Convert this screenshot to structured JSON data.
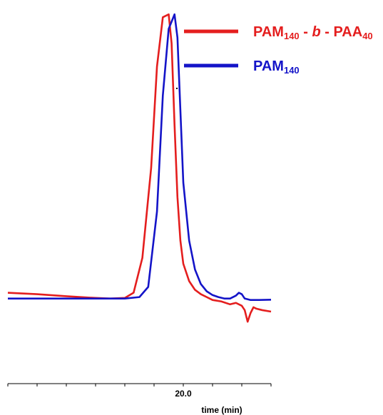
{
  "chart_data": {
    "type": "line",
    "xlabel": "time (min)",
    "ylabel": "",
    "xlim": [
      14.0,
      23.0
    ],
    "ylim": [
      -0.2,
      1.0
    ],
    "grid": false,
    "legend_position": "top-right",
    "x_ticks": [
      {
        "value": 14.0,
        "label": ""
      },
      {
        "value": 15.0,
        "label": ""
      },
      {
        "value": 16.0,
        "label": ""
      },
      {
        "value": 17.0,
        "label": ""
      },
      {
        "value": 18.0,
        "label": ""
      },
      {
        "value": 19.0,
        "label": ""
      },
      {
        "value": 20.0,
        "label": "20.0"
      },
      {
        "value": 21.0,
        "label": ""
      },
      {
        "value": 22.0,
        "label": ""
      },
      {
        "value": 23.0,
        "label": ""
      }
    ],
    "series": [
      {
        "name": "PAM140 - b - PAA40",
        "name_parts": {
          "main1": "PAM",
          "sub1": "140",
          "mid1": " - ",
          "italic": "b",
          "mid2": " - ",
          "main2": "PAA",
          "sub2": "40"
        },
        "color": "#e41e1e",
        "x": [
          14.0,
          15.0,
          16.0,
          17.0,
          17.5,
          18.0,
          18.3,
          18.6,
          18.9,
          19.1,
          19.3,
          19.5,
          19.6,
          19.7,
          19.8,
          19.9,
          20.0,
          20.2,
          20.4,
          20.6,
          20.8,
          21.0,
          21.3,
          21.6,
          21.8,
          22.0,
          22.1,
          22.2,
          22.3,
          22.4,
          22.5,
          22.7,
          23.0
        ],
        "y": [
          0.02,
          0.015,
          0.008,
          0.002,
          0.0,
          0.002,
          0.02,
          0.14,
          0.45,
          0.8,
          0.97,
          0.98,
          0.88,
          0.6,
          0.35,
          0.2,
          0.12,
          0.06,
          0.03,
          0.015,
          0.005,
          -0.005,
          -0.01,
          -0.02,
          -0.015,
          -0.025,
          -0.04,
          -0.08,
          -0.05,
          -0.03,
          -0.035,
          -0.04,
          -0.045
        ]
      },
      {
        "name": "PAM140",
        "name_parts": {
          "main1": "PAM",
          "sub1": "140"
        },
        "color": "#1414c8",
        "x": [
          14.0,
          15.0,
          16.0,
          17.0,
          17.5,
          18.0,
          18.5,
          18.8,
          19.1,
          19.3,
          19.5,
          19.7,
          19.8,
          19.9,
          20.0,
          20.2,
          20.4,
          20.6,
          20.8,
          21.0,
          21.2,
          21.4,
          21.6,
          21.8,
          21.9,
          22.0,
          22.1,
          22.3,
          22.6,
          23.0
        ],
        "y": [
          0.0,
          0.0,
          0.0,
          0.0,
          0.0,
          0.0,
          0.005,
          0.04,
          0.3,
          0.7,
          0.93,
          0.98,
          0.9,
          0.65,
          0.4,
          0.2,
          0.1,
          0.05,
          0.025,
          0.012,
          0.005,
          0.0,
          0.0,
          0.01,
          0.02,
          0.015,
          0.0,
          -0.005,
          -0.005,
          -0.004
        ]
      }
    ]
  }
}
